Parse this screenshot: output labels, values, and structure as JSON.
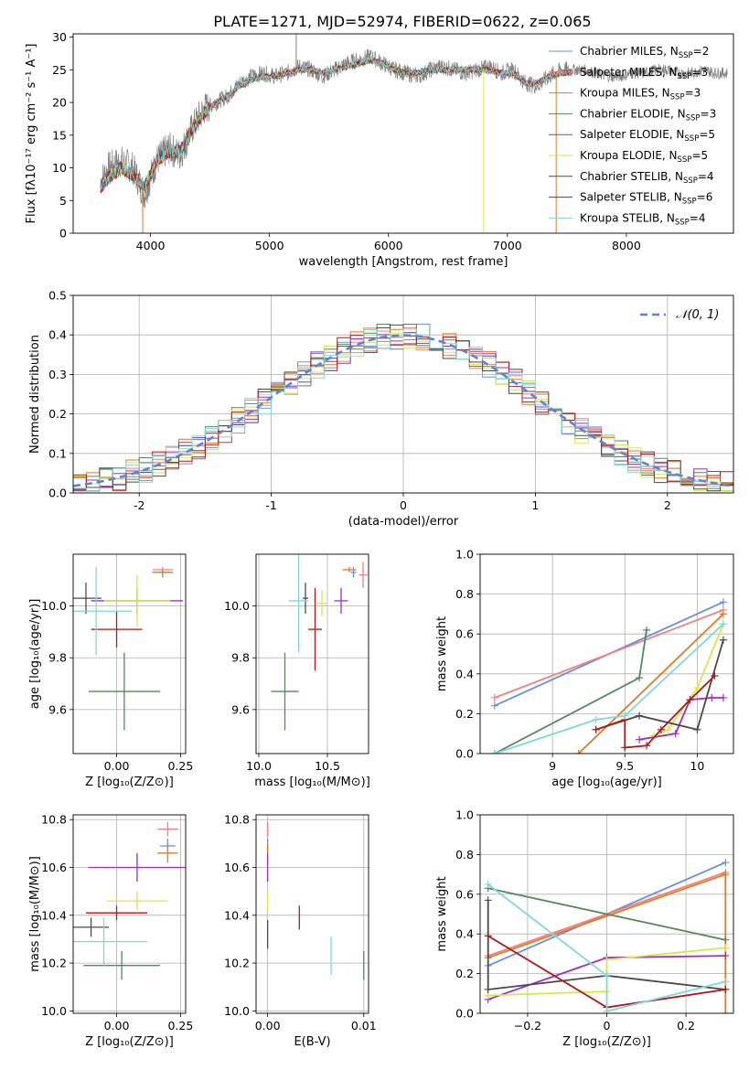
{
  "figure": {
    "suptitle": "PLATE=1271, MJD=52974, FIBERID=0622, z=0.065"
  },
  "colors": {
    "Chabrier MILES": "#6a8fdf",
    "Salpeter MILES": "#f08080",
    "Kroupa MILES": "#e07b1f",
    "Chabrier ELODIE": "#55885c",
    "Salpeter ELODIE": "#9b30c0",
    "Kroupa ELODIE": "#d4e84a",
    "Chabrier STELIB": "#4a4a4a",
    "Salpeter STELIB": "#b01818",
    "Kroupa STELIB": "#80d8dc"
  },
  "chart_data": [
    {
      "id": "spectrum",
      "type": "line",
      "xlabel": "wavelength [Angstrom, rest frame]",
      "ylabel": "Flux [fλ10⁻¹⁷ erg cm⁻² s⁻¹ A⁻¹]",
      "xlim": [
        3350,
        8900
      ],
      "ylim": [
        0,
        30.5
      ],
      "xticks": [
        4000,
        5000,
        6000,
        7000,
        8000
      ],
      "yticks": [
        0,
        5,
        10,
        15,
        20,
        25,
        30
      ],
      "legend": "top-right",
      "legend_entries": [
        {
          "model": "Chabrier MILES",
          "label": "Chabrier MILES, N",
          "sub": "SSP",
          "tail": "=2"
        },
        {
          "model": "Salpeter MILES",
          "label": "Salpeter MILES, N",
          "sub": "SSP",
          "tail": "=3"
        },
        {
          "model": "Kroupa MILES",
          "label": "Kroupa MILES, N",
          "sub": "SSP",
          "tail": "=3"
        },
        {
          "model": "Chabrier ELODIE",
          "label": "Chabrier ELODIE, N",
          "sub": "SSP",
          "tail": "=3"
        },
        {
          "model": "Salpeter ELODIE",
          "label": "Salpeter ELODIE, N",
          "sub": "SSP",
          "tail": "=5"
        },
        {
          "model": "Kroupa ELODIE",
          "label": "Kroupa ELODIE, N",
          "sub": "SSP",
          "tail": "=5"
        },
        {
          "model": "Chabrier STELIB",
          "label": "Chabrier STELIB, N",
          "sub": "SSP",
          "tail": "=4"
        },
        {
          "model": "Salpeter STELIB",
          "label": "Salpeter STELIB, N",
          "sub": "SSP",
          "tail": "=6"
        },
        {
          "model": "Kroupa STELIB",
          "label": "Kroupa STELIB, N",
          "sub": "SSP",
          "tail": "=4"
        }
      ],
      "data_x": [
        3580,
        3650,
        3750,
        3850,
        3950,
        4050,
        4150,
        4250,
        4350,
        4450,
        4550,
        4650,
        4750,
        4850,
        4950,
        5050,
        5150,
        5250,
        5350,
        5450,
        5550,
        5650,
        5750,
        5850,
        5950,
        6050,
        6150,
        6250,
        6350,
        6450,
        6550,
        6650,
        6750,
        6850,
        6950,
        7050,
        7150,
        7250,
        7350,
        7450,
        7550,
        7650,
        7750,
        7850,
        7950,
        8050,
        8150,
        8250,
        8350,
        8450,
        8550,
        8650,
        8750,
        8850
      ],
      "data_y": [
        8,
        10,
        11,
        10,
        6,
        11,
        13,
        12,
        16,
        19,
        20,
        21,
        23,
        24,
        24.5,
        24,
        24.5,
        25.5,
        25,
        24,
        25,
        26,
        26.5,
        27,
        26,
        25,
        24.5,
        24,
        25,
        25.5,
        25,
        24.5,
        25,
        25.5,
        24.5,
        25,
        23,
        22.5,
        24,
        25,
        25,
        25,
        24.5,
        24,
        24,
        24.5,
        24.5,
        25,
        25,
        24.5,
        24.5,
        25,
        24.5,
        24.5
      ],
      "model_curve_y": [
        7,
        8.5,
        10,
        9,
        7,
        11,
        12.5,
        12.5,
        16,
        18.5,
        20,
        21,
        22.5,
        23.5,
        24,
        24,
        24.5,
        25,
        25,
        24.5,
        25,
        25.5,
        26,
        26.5,
        26,
        25,
        24.5,
        24.5,
        25,
        25,
        25,
        25,
        25,
        25,
        24.5,
        24.5,
        23,
        23,
        24,
        24.5,
        24.5
      ],
      "dips": [
        {
          "x": 3934,
          "y": 0
        },
        {
          "x": 5225,
          "y": 30.5
        },
        {
          "x": 6800,
          "y": 0
        },
        {
          "x": 7410,
          "y": 0
        }
      ]
    },
    {
      "id": "histogram",
      "type": "histogram",
      "xlabel": "(data-model)/error",
      "ylabel": "Normed distribution",
      "xlim": [
        -2.5,
        2.5
      ],
      "ylim": [
        0,
        0.5
      ],
      "xticks": [
        -2,
        -1,
        0,
        1,
        2
      ],
      "yticks": [
        0.0,
        0.1,
        0.2,
        0.3,
        0.4,
        0.5
      ],
      "legend": "top-right",
      "legend_label": "𝒩(0, 1)",
      "bin_width": 0.1,
      "reference_curve": "standard normal"
    },
    {
      "id": "age-vs-Z",
      "type": "scatter",
      "xlabel": "Z [log₁₀(Z/Z⊙)]",
      "ylabel": "age  [log₁₀(age/yr)]",
      "xlim": [
        -0.17,
        0.27
      ],
      "ylim": [
        9.43,
        10.2
      ],
      "xticks": [
        -0.0,
        0.25
      ],
      "xtick_labels": [
        "0.00",
        "0.25"
      ],
      "yticks": [
        9.6,
        9.8,
        10.0
      ],
      "points": [
        {
          "model": "Chabrier MILES",
          "x": 0.18,
          "y": 10.13,
          "ex": 0.04,
          "ey": 0.02
        },
        {
          "model": "Salpeter MILES",
          "x": 0.18,
          "y": 10.14,
          "ex": 0.04,
          "ey": 0.01
        },
        {
          "model": "Kroupa MILES",
          "x": 0.18,
          "y": 10.13,
          "ex": 0.04,
          "ey": 0.01
        },
        {
          "model": "Chabrier ELODIE",
          "x": 0.03,
          "y": 9.67,
          "ex": 0.14,
          "ey": 0.15
        },
        {
          "model": "Salpeter ELODIE",
          "x": 0.08,
          "y": 10.02,
          "ex": 0.18,
          "ey": 0.05
        },
        {
          "model": "Kroupa ELODIE",
          "x": 0.08,
          "y": 10.02,
          "ex": 0.13,
          "ey": 0.1
        },
        {
          "model": "Chabrier STELIB",
          "x": -0.12,
          "y": 10.03,
          "ex": 0.06,
          "ey": 0.06
        },
        {
          "model": "Salpeter STELIB",
          "x": 0.0,
          "y": 9.91,
          "ex": 0.1,
          "ey": 0.07
        },
        {
          "model": "Kroupa STELIB",
          "x": -0.08,
          "y": 9.98,
          "ex": 0.14,
          "ey": 0.17
        }
      ]
    },
    {
      "id": "age-vs-mass",
      "type": "scatter",
      "xlabel": "mass [log₁₀(M/M⊙)]",
      "ylabel": "",
      "xlim": [
        9.98,
        10.8
      ],
      "ylim": [
        9.43,
        10.2
      ],
      "xticks": [
        10.0,
        10.5
      ],
      "xtick_labels": [
        "10.0",
        "10.5"
      ],
      "yticks": [
        9.6,
        9.8,
        10.0
      ],
      "points": [
        {
          "model": "Chabrier MILES",
          "x": 10.69,
          "y": 10.13,
          "ex": 0.02,
          "ey": 0.02
        },
        {
          "model": "Salpeter MILES",
          "x": 10.76,
          "y": 10.12,
          "ex": 0.03,
          "ey": 0.05
        },
        {
          "model": "Kroupa MILES",
          "x": 10.66,
          "y": 10.14,
          "ex": 0.05,
          "ey": 0.01
        },
        {
          "model": "Chabrier ELODIE",
          "x": 10.19,
          "y": 9.67,
          "ex": 0.1,
          "ey": 0.15
        },
        {
          "model": "Salpeter ELODIE",
          "x": 10.6,
          "y": 10.02,
          "ex": 0.05,
          "ey": 0.05
        },
        {
          "model": "Kroupa ELODIE",
          "x": 10.46,
          "y": 10.01,
          "ex": 0.04,
          "ey": 0.05
        },
        {
          "model": "Chabrier STELIB",
          "x": 10.34,
          "y": 10.03,
          "ex": 0.02,
          "ey": 0.06
        },
        {
          "model": "Salpeter STELIB",
          "x": 10.41,
          "y": 9.91,
          "ex": 0.05,
          "ey": 0.16
        },
        {
          "model": "Kroupa STELIB",
          "x": 10.29,
          "y": 10.02,
          "ex": 0.07,
          "ey": 0.2
        }
      ]
    },
    {
      "id": "weight-vs-age",
      "type": "line",
      "xlabel": "age  [log₁₀(age/yr)]",
      "ylabel": "mass weight",
      "xlim": [
        8.5,
        10.25
      ],
      "ylim": [
        0,
        1.0
      ],
      "xticks": [
        9.0,
        9.5,
        10.0
      ],
      "yticks": [
        0.0,
        0.2,
        0.4,
        0.6,
        0.8,
        1.0
      ],
      "series": [
        {
          "model": "Chabrier MILES",
          "x": [
            8.6,
            10.18
          ],
          "y": [
            0.24,
            0.76
          ]
        },
        {
          "model": "Salpeter MILES",
          "x": [
            8.6,
            10.18
          ],
          "y": [
            0.28,
            0.72
          ]
        },
        {
          "model": "Kroupa MILES",
          "x": [
            9.18,
            10.18
          ],
          "y": [
            0.0,
            0.7
          ]
        },
        {
          "model": "Chabrier ELODIE",
          "x": [
            8.6,
            9.6,
            9.65
          ],
          "y": [
            0.0,
            0.38,
            0.62
          ]
        },
        {
          "model": "Salpeter ELODIE",
          "x": [
            9.6,
            9.85,
            9.95,
            10.1,
            10.18
          ],
          "y": [
            0.07,
            0.1,
            0.27,
            0.28,
            0.28
          ]
        },
        {
          "model": "Kroupa ELODIE",
          "x": [
            9.7,
            9.8,
            10.0,
            10.18
          ],
          "y": [
            0.09,
            0.12,
            0.33,
            0.65
          ]
        },
        {
          "model": "Chabrier STELIB",
          "x": [
            9.3,
            9.6,
            10.0,
            10.18
          ],
          "y": [
            0.12,
            0.19,
            0.12,
            0.57
          ]
        },
        {
          "model": "Salpeter STELIB",
          "x": [
            9.3,
            9.5,
            9.5,
            9.65,
            9.75,
            9.95,
            10.12
          ],
          "y": [
            0.12,
            0.17,
            0.03,
            0.04,
            0.12,
            0.27,
            0.39
          ]
        },
        {
          "model": "Kroupa STELIB",
          "x": [
            8.6,
            9.3,
            9.5,
            10.18
          ],
          "y": [
            0.0,
            0.17,
            0.19,
            0.65
          ]
        }
      ]
    },
    {
      "id": "mass-vs-Z",
      "type": "scatter",
      "xlabel": "Z [log₁₀(Z/Z⊙)]",
      "ylabel": "mass [log₁₀(M/M⊙)]",
      "xlim": [
        -0.17,
        0.27
      ],
      "ylim": [
        9.99,
        10.82
      ],
      "xticks": [
        0.0,
        0.25
      ],
      "xtick_labels": [
        "0.00",
        "0.25"
      ],
      "yticks": [
        10.0,
        10.2,
        10.4,
        10.6,
        10.8
      ],
      "points": [
        {
          "model": "Chabrier MILES",
          "x": 0.2,
          "y": 10.69,
          "ex": 0.03,
          "ey": 0.03
        },
        {
          "model": "Salpeter MILES",
          "x": 0.2,
          "y": 10.76,
          "ex": 0.04,
          "ey": 0.03
        },
        {
          "model": "Kroupa MILES",
          "x": 0.2,
          "y": 10.66,
          "ex": 0.04,
          "ey": 0.04
        },
        {
          "model": "Chabrier ELODIE",
          "x": 0.02,
          "y": 10.19,
          "ex": 0.15,
          "ey": 0.06
        },
        {
          "model": "Salpeter ELODIE",
          "x": 0.08,
          "y": 10.6,
          "ex": 0.19,
          "ey": 0.06
        },
        {
          "model": "Kroupa ELODIE",
          "x": 0.08,
          "y": 10.46,
          "ex": 0.12,
          "ey": 0.04
        },
        {
          "model": "Chabrier STELIB",
          "x": -0.1,
          "y": 10.35,
          "ex": 0.07,
          "ey": 0.04
        },
        {
          "model": "Salpeter STELIB",
          "x": 0.0,
          "y": 10.41,
          "ex": 0.12,
          "ey": 0.03
        },
        {
          "model": "Kroupa STELIB",
          "x": -0.05,
          "y": 10.29,
          "ex": 0.17,
          "ey": 0.1
        }
      ]
    },
    {
      "id": "mass-vs-EBV",
      "type": "scatter",
      "xlabel": "E(B-V)",
      "ylabel": "",
      "xlim": [
        -0.0012,
        0.0105
      ],
      "ylim": [
        9.99,
        10.82
      ],
      "xticks": [
        0.0,
        0.01
      ],
      "xtick_labels": [
        "0.00",
        "0.01"
      ],
      "yticks": [
        10.0,
        10.2,
        10.4,
        10.6,
        10.8
      ],
      "points": [
        {
          "model": "Chabrier MILES",
          "x": 0.0,
          "y": 10.69,
          "ex": 0,
          "ey": 0.03
        },
        {
          "model": "Salpeter MILES",
          "x": 0.0,
          "y": 10.76,
          "ex": 0,
          "ey": 0.03
        },
        {
          "model": "Kroupa MILES",
          "x": 0.0,
          "y": 10.66,
          "ex": 0,
          "ey": 0.04
        },
        {
          "model": "Chabrier ELODIE",
          "x": 0.01,
          "y": 10.19,
          "ex": 0,
          "ey": 0.06
        },
        {
          "model": "Salpeter ELODIE",
          "x": 0.0,
          "y": 10.6,
          "ex": 0,
          "ey": 0.06
        },
        {
          "model": "Kroupa ELODIE",
          "x": 0.0,
          "y": 10.46,
          "ex": 0,
          "ey": 0.04
        },
        {
          "model": "Chabrier STELIB",
          "x": 0.0,
          "y": 10.32,
          "ex": 0,
          "ey": 0.06
        },
        {
          "model": "Salpeter STELIB",
          "x": 0.0033,
          "y": 10.39,
          "ex": 0,
          "ey": 0.05
        },
        {
          "model": "Kroupa STELIB",
          "x": 0.0066,
          "y": 10.23,
          "ex": 0,
          "ey": 0.08
        }
      ]
    },
    {
      "id": "weight-vs-Z",
      "type": "line",
      "xlabel": "Z [log₁₀(Z/Z⊙)]",
      "ylabel": "mass weight",
      "xlim": [
        -0.32,
        0.32
      ],
      "ylim": [
        0,
        1.0
      ],
      "xticks": [
        -0.2,
        0.0,
        0.2
      ],
      "yticks": [
        0.0,
        0.2,
        0.4,
        0.6,
        0.8,
        1.0
      ],
      "series": [
        {
          "model": "Chabrier MILES",
          "x": [
            -0.3,
            0.3
          ],
          "y": [
            0.24,
            0.76
          ]
        },
        {
          "model": "Salpeter MILES",
          "x": [
            -0.3,
            0.3
          ],
          "y": [
            0.29,
            0.71
          ]
        },
        {
          "model": "Kroupa MILES",
          "x": [
            -0.3,
            0.3,
            0.3
          ],
          "y": [
            0.28,
            0.7,
            0.0
          ]
        },
        {
          "model": "Chabrier ELODIE",
          "x": [
            -0.3,
            0.3
          ],
          "y": [
            0.63,
            0.37
          ]
        },
        {
          "model": "Salpeter ELODIE",
          "x": [
            -0.3,
            0.0,
            0.3
          ],
          "y": [
            0.07,
            0.28,
            0.29
          ]
        },
        {
          "model": "Kroupa ELODIE",
          "x": [
            -0.3,
            0.0,
            0.0,
            0.3
          ],
          "y": [
            0.09,
            0.11,
            0.27,
            0.33
          ]
        },
        {
          "model": "Chabrier STELIB",
          "x": [
            -0.3,
            -0.3,
            0.0,
            0.3
          ],
          "y": [
            0.57,
            0.12,
            0.19,
            0.12
          ]
        },
        {
          "model": "Salpeter STELIB",
          "x": [
            -0.3,
            0.0,
            0.3
          ],
          "y": [
            0.39,
            0.03,
            0.12
          ]
        },
        {
          "model": "Kroupa STELIB",
          "x": [
            -0.3,
            0.0,
            0.0,
            0.3
          ],
          "y": [
            0.65,
            0.19,
            0.01,
            0.16
          ]
        }
      ]
    }
  ]
}
